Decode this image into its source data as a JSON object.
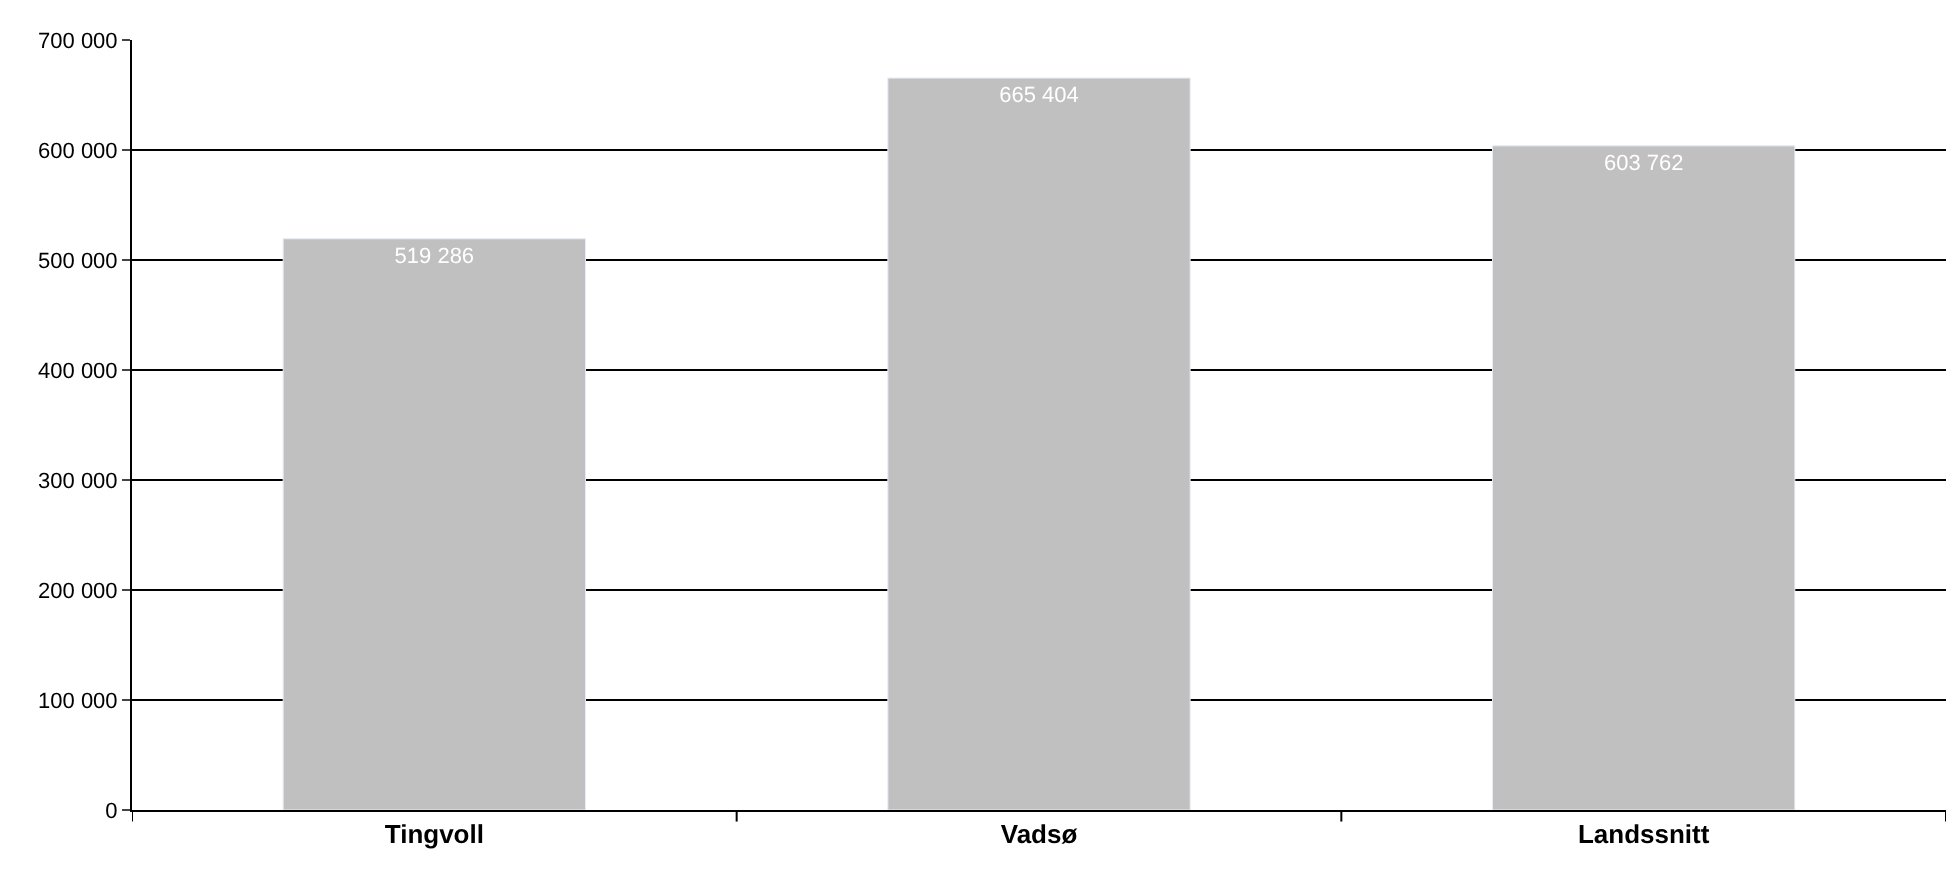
{
  "chart_data": {
    "type": "bar",
    "categories": [
      "Tingvoll",
      "Vadsø",
      "Landssnitt"
    ],
    "values": [
      519286,
      665404,
      603762
    ],
    "color": "#c0c0c0",
    "ylim": [
      0,
      700000
    ],
    "yticks": [
      {
        "value": 0,
        "label": "0"
      },
      {
        "value": 100000,
        "label": "100 000"
      },
      {
        "value": 200000,
        "label": "200 000"
      },
      {
        "value": 300000,
        "label": "300 000"
      },
      {
        "value": 400000,
        "label": "400 000"
      },
      {
        "value": 500000,
        "label": "500 000"
      },
      {
        "value": 600000,
        "label": "600 000"
      },
      {
        "value": 700000,
        "label": "700 000"
      }
    ],
    "grid": "y",
    "data_labels": true,
    "legend": false
  }
}
